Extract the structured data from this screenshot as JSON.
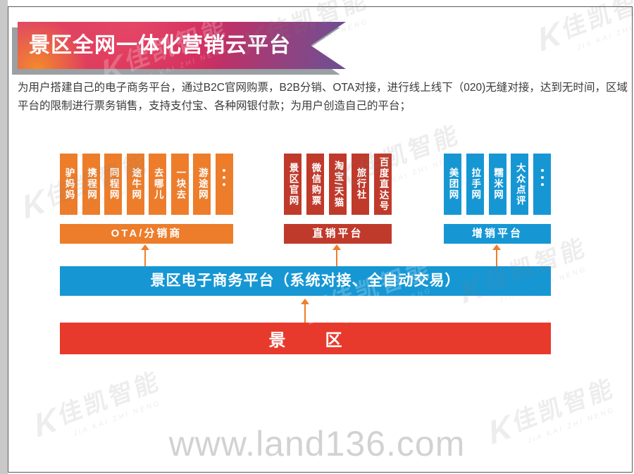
{
  "title": "景区全网一体化营销云平台",
  "description": "为用户搭建自己的电子商务平台，通过B2C官网购票，B2B分销、OTA对接，进行线上线下（020)无缝对接，达到无时间，区域平台的限制进行票务销售，支持支付宝、各种网银付款；为用户创造自己的平台；",
  "groups": [
    {
      "id": "ota",
      "label": "OTA/分销商",
      "color": "#ED7D2B",
      "channels": [
        "驴妈妈",
        "携程网",
        "同程网",
        "途牛网",
        "去哪儿",
        "一块去",
        "游途网",
        "…"
      ]
    },
    {
      "id": "direct",
      "label": "直销平台",
      "color": "#C03A2B",
      "channels": [
        "景区官网",
        "微信购票",
        "淘宝/天猫",
        "旅行社",
        "百度直达号"
      ]
    },
    {
      "id": "upsell",
      "label": "增销平台",
      "color": "#1697D4",
      "channels": [
        "美团网",
        "拉手网",
        "糯米网",
        "大众点评",
        "…"
      ]
    }
  ],
  "platform_bar": "景区电子商务平台（系统对接、全自动交易）",
  "bottom_bar": {
    "left": "景",
    "right": "区"
  },
  "watermark": {
    "url": "www.land136.com",
    "logo": "佳凯智能",
    "logo_k": "K",
    "logo_sub": "JIA KAI ZHI NENG"
  },
  "colors": {
    "ota_orange": "#ED7D2B",
    "direct_red": "#C03A2B",
    "upsell_blue": "#1697D4",
    "platform_blue": "#1697D4",
    "scenic_red": "#E73A2C",
    "banner_start": "#E14A63",
    "banner_end": "#6B5094",
    "arrow_orange": "#EE7E2C",
    "watermark_gray": "#D2D2D2"
  }
}
